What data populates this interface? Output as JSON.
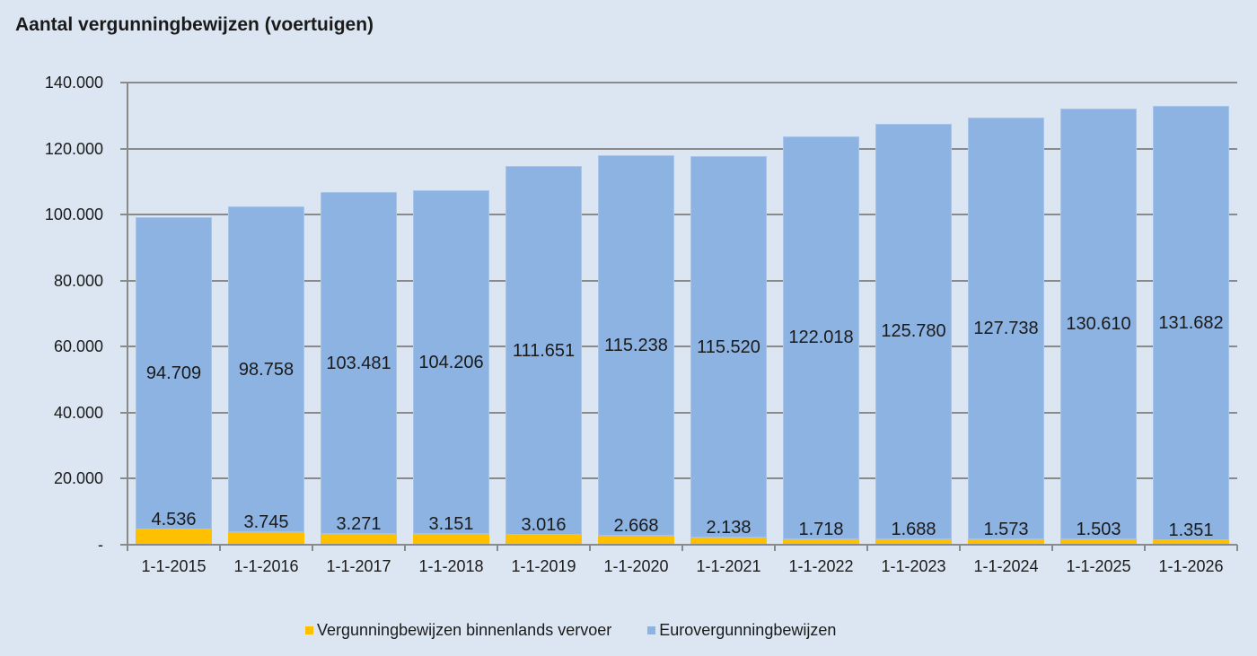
{
  "title": "Aantal vergunningbewijzen (voertuigen)",
  "colors": {
    "background": "#dce6f2",
    "euro": "#8db3e2",
    "binnenlands": "#ffc000",
    "grid": "#8a8a8a"
  },
  "legend": {
    "items": [
      {
        "label": "Vergunningbewijzen binnenlands vervoer",
        "color": "#ffc000"
      },
      {
        "label": "Eurovergunningbewijzen",
        "color": "#8db3e2"
      }
    ]
  },
  "y_axis": {
    "ticks": [
      "-",
      "20.000",
      "40.000",
      "60.000",
      "80.000",
      "100.000",
      "120.000",
      "140.000"
    ]
  },
  "chart_data": {
    "type": "bar",
    "stacked": true,
    "title": "Aantal vergunningbewijzen (voertuigen)",
    "xlabel": "",
    "ylabel": "",
    "ylim": [
      0,
      140000
    ],
    "y_ticks": [
      0,
      20000,
      40000,
      60000,
      80000,
      100000,
      120000,
      140000
    ],
    "grid": "horizontal",
    "legend_position": "bottom",
    "categories": [
      "1-1-2015",
      "1-1-2016",
      "1-1-2017",
      "1-1-2018",
      "1-1-2019",
      "1-1-2020",
      "1-1-2021",
      "1-1-2022",
      "1-1-2023",
      "1-1-2024",
      "1-1-2025",
      "1-1-2026"
    ],
    "series": [
      {
        "name": "Vergunningbewijzen binnenlands vervoer",
        "color": "#ffc000",
        "values": [
          4536,
          3745,
          3271,
          3151,
          3016,
          2668,
          2138,
          1718,
          1688,
          1573,
          1503,
          1351
        ],
        "labels": [
          "4.536",
          "3.745",
          "3.271",
          "3.151",
          "3.016",
          "2.668",
          "2.138",
          "1.718",
          "1.688",
          "1.573",
          "1.503",
          "1.351"
        ]
      },
      {
        "name": "Eurovergunningbewijzen",
        "color": "#8db3e2",
        "values": [
          94709,
          98758,
          103481,
          104206,
          111651,
          115238,
          115520,
          122018,
          125780,
          127738,
          130610,
          131682
        ],
        "labels": [
          "94.709",
          "98.758",
          "103.481",
          "104.206",
          "111.651",
          "115.238",
          "115.520",
          "122.018",
          "125.780",
          "127.738",
          "130.610",
          "131.682"
        ]
      }
    ]
  }
}
